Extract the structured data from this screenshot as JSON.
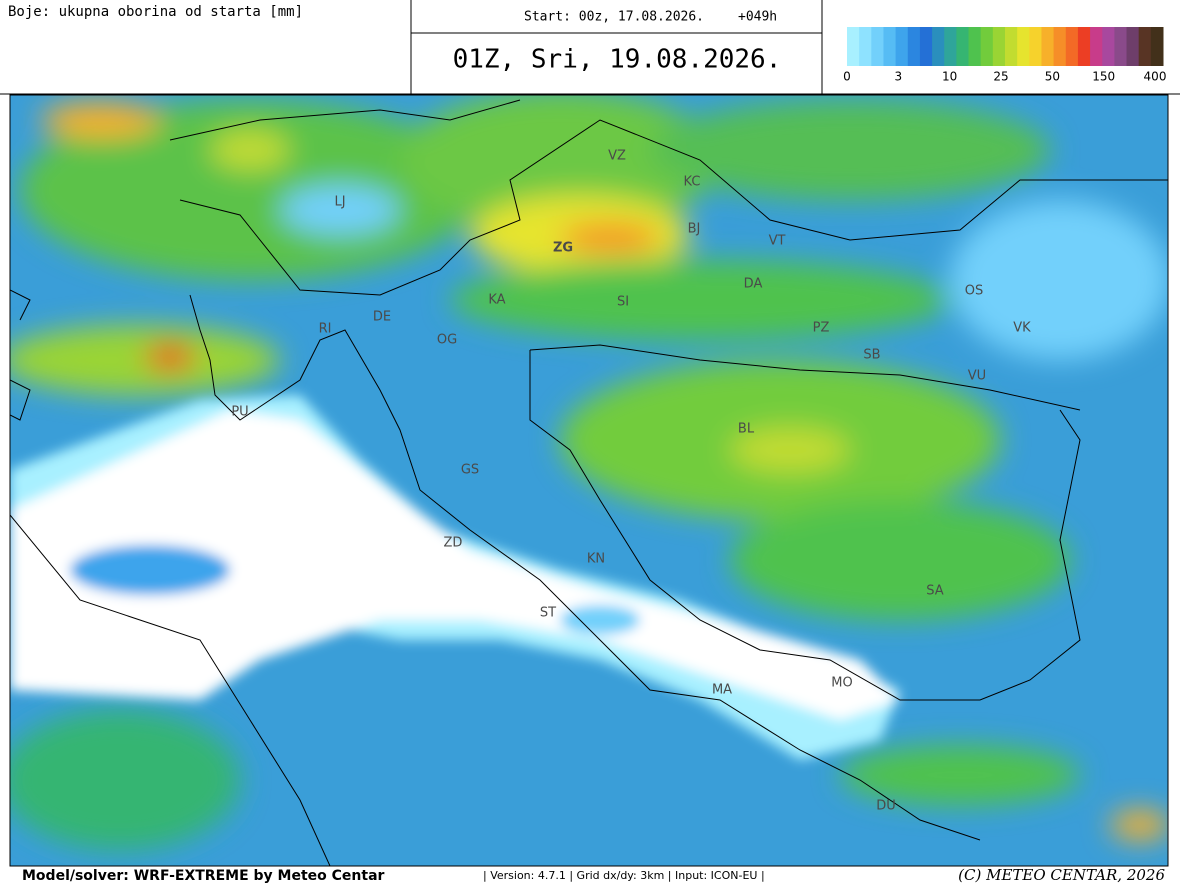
{
  "header": {
    "legend_title": "Boje: ukupna oborina od starta [mm]",
    "start": "Start: 00z, 17.08.2026.",
    "lead": "+049h",
    "valid": "01Z, Sri, 19.08.2026."
  },
  "colorbar": {
    "colors": [
      "#a8f0ff",
      "#8ee2ff",
      "#72d0fb",
      "#56bcf4",
      "#3ea4ec",
      "#2b86e0",
      "#2470d6",
      "#2a8fbd",
      "#2fa59a",
      "#36b572",
      "#4fc24e",
      "#72cc3c",
      "#9ad434",
      "#c2dc30",
      "#e6e42e",
      "#f6d22c",
      "#f7b02a",
      "#f68e28",
      "#f36a26",
      "#ec3e24",
      "#c83c8a",
      "#a8489e",
      "#8a4a8a",
      "#6e3e6a",
      "#583424",
      "#42301a"
    ],
    "labels": [
      0,
      3,
      10,
      25,
      50,
      150,
      400
    ]
  },
  "cities": [
    "VZ",
    "KC",
    "LJ",
    "BJ",
    "ZG",
    "VT",
    "KA",
    "SI",
    "DA",
    "OS",
    "DE",
    "PZ",
    "RI",
    "OG",
    "VK",
    "SB",
    "VU",
    "PU",
    "BL",
    "GS",
    "ZD",
    "KN",
    "SA",
    "ST",
    "MA",
    "MO",
    "DU"
  ],
  "footer": {
    "model": "Model/solver: WRF-EXTREME by Meteo Centar",
    "info": "| Version: 4.7.1 | Grid dx/dy: 3km | Input: ICON-EU |",
    "copyright": "(C) METEO CENTAR, 2026"
  }
}
